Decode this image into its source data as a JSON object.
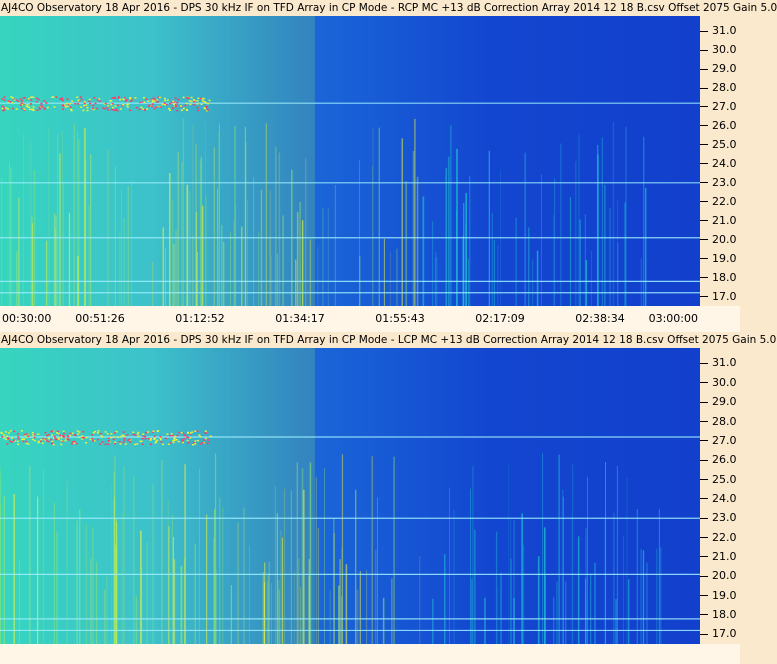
{
  "chart_data": [
    {
      "type": "heatmap",
      "title": "AJ4CO Observatory 18 Apr 2016 - DPS 30 kHz IF on TFD Array in CP Mode - RCP  MC +13 dB  Correction Array 2014 12 18 B.csv  Offset 2075  Gain 5.0",
      "polarization": "RCP",
      "xlabel": "",
      "ylabel": "",
      "x_tick_labels": [
        "00:30:00",
        "00:51:26",
        "01:12:52",
        "01:34:17",
        "01:55:43",
        "02:17:09",
        "02:38:34",
        "03:00:00"
      ],
      "y_tick_labels": [
        "31.0",
        "30.0",
        "29.0",
        "28.0",
        "27.0",
        "26.0",
        "25.0",
        "24.0",
        "23.0",
        "22.0",
        "21.0",
        "20.0",
        "19.0",
        "18.0",
        "17.0"
      ],
      "ylim": [
        16.5,
        31.8
      ],
      "colormap": [
        "#1240cc",
        "#1a66d8",
        "#27b6e6",
        "#1fd0d8",
        "#8fe86b",
        "#e8f23a",
        "#ff3a6b"
      ]
    },
    {
      "type": "heatmap",
      "title": "AJ4CO Observatory 18 Apr 2016 - DPS 30 kHz IF on TFD Array in CP Mode - LCP  MC +13 dB  Correction Array 2014 12 18 B.csv  Offset 2075  Gain 5.0",
      "polarization": "LCP",
      "xlabel": "",
      "ylabel": "",
      "x_tick_labels": [],
      "y_tick_labels": [
        "31.0",
        "30.0",
        "29.0",
        "28.0",
        "27.0",
        "26.0",
        "25.0",
        "24.0",
        "23.0",
        "22.0",
        "21.0",
        "20.0",
        "19.0",
        "18.0",
        "17.0"
      ],
      "ylim": [
        16.5,
        31.8
      ],
      "colormap": [
        "#1240cc",
        "#1a66d8",
        "#27b6e6",
        "#1fd0d8",
        "#8fe86b",
        "#e8f23a",
        "#ff3a6b"
      ]
    }
  ]
}
